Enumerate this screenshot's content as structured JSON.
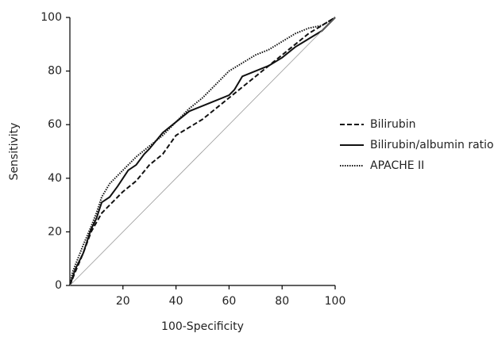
{
  "chart_data": {
    "type": "line",
    "x_label": "100-Specificity",
    "y_label": "Sensitivity",
    "xlim": [
      0,
      100
    ],
    "ylim": [
      0,
      100
    ],
    "xticks": [
      20,
      40,
      60,
      80,
      100
    ],
    "yticks": [
      0,
      20,
      40,
      60,
      80,
      100
    ],
    "legend": "right",
    "series": [
      {
        "name": "Bilirubin",
        "color": "#111111",
        "dash": "dashed",
        "x": [
          0,
          2,
          5,
          8,
          12,
          16,
          20,
          25,
          30,
          35,
          40,
          45,
          50,
          55,
          60,
          65,
          70,
          75,
          80,
          85,
          90,
          95,
          100
        ],
        "values": [
          0,
          5,
          12,
          20,
          27,
          31,
          35,
          39,
          45,
          49,
          56,
          59,
          62,
          66,
          70,
          74,
          78,
          82,
          86,
          90,
          94,
          97,
          100
        ]
      },
      {
        "name": "Bilirubin/albumin ratio",
        "color": "#111111",
        "dash": "solid",
        "x": [
          0,
          2,
          5,
          8,
          10,
          12,
          15,
          18,
          20,
          22,
          25,
          28,
          30,
          35,
          40,
          45,
          50,
          55,
          60,
          62,
          65,
          70,
          75,
          80,
          85,
          90,
          95,
          100
        ],
        "values": [
          0,
          6,
          12,
          21,
          25,
          31,
          33,
          37,
          40,
          43,
          45,
          49,
          51,
          57,
          61,
          65,
          67,
          69,
          71,
          73,
          78,
          80,
          82,
          85,
          89,
          92,
          95,
          100
        ]
      },
      {
        "name": "APACHE II",
        "color": "#111111",
        "dash": "dotted",
        "x": [
          0,
          1,
          3,
          5,
          8,
          10,
          12,
          15,
          20,
          25,
          30,
          35,
          40,
          45,
          50,
          55,
          60,
          65,
          70,
          75,
          80,
          85,
          90,
          95,
          100
        ],
        "values": [
          0,
          5,
          10,
          15,
          22,
          27,
          33,
          38,
          43,
          48,
          52,
          56,
          61,
          66,
          70,
          75,
          80,
          83,
          86,
          88,
          91,
          94,
          96,
          97,
          100
        ]
      },
      {
        "color": "#999999",
        "dash": "thin",
        "x": [
          0,
          100
        ],
        "values": [
          0,
          100
        ]
      }
    ]
  }
}
